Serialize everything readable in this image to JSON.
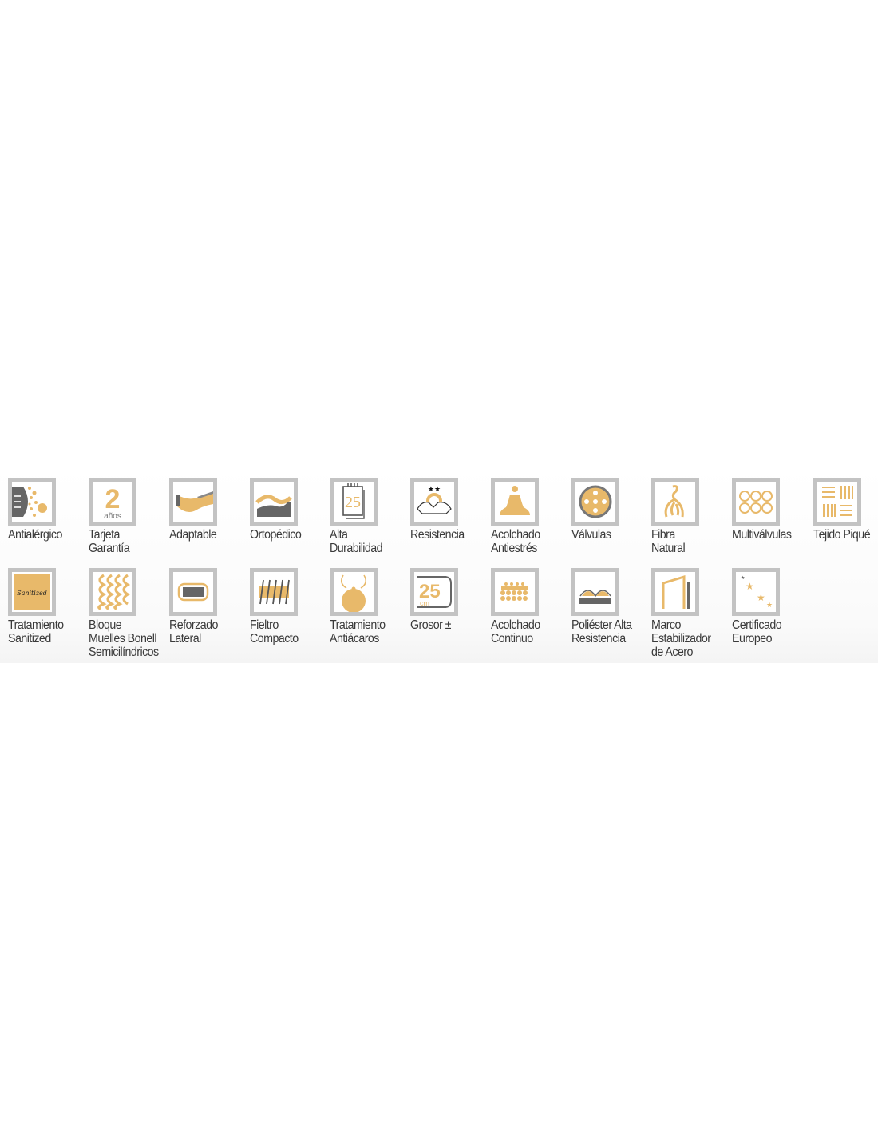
{
  "colors": {
    "frame": "#c3c3c3",
    "gold": "#e8b96a",
    "dark": "#666666",
    "text": "#3a3a3a"
  },
  "features": [
    {
      "label": "Antialérgico",
      "icon": "antiallergic-icon"
    },
    {
      "label": "Tarjeta\nGarantía",
      "icon": "warranty-2-years-icon",
      "number": "2",
      "unit": "años"
    },
    {
      "label": "Adaptable",
      "icon": "adaptable-icon"
    },
    {
      "label": "Ortopédico",
      "icon": "orthopedic-icon"
    },
    {
      "label": "Alta\nDurabilidad",
      "icon": "calendar-25-icon",
      "number": "25"
    },
    {
      "label": "Resistencia",
      "icon": "resistance-handshake-icon"
    },
    {
      "label": "Acolchado\nAntiestrés",
      "icon": "meditation-icon"
    },
    {
      "label": "Válvulas",
      "icon": "valve-icon"
    },
    {
      "label": "Fibra\nNatural",
      "icon": "natural-fiber-icon"
    },
    {
      "label": "Multiválvulas",
      "icon": "multi-valve-icon"
    },
    {
      "label": "Tejido Piqué",
      "icon": "pique-fabric-icon"
    },
    {
      "label": "Tratamiento\nSanitized",
      "icon": "sanitized-icon",
      "badge": "Sanitized"
    },
    {
      "label": "Bloque\nMuelles Bonell\nSemicilíndricos",
      "icon": "bonnell-springs-icon"
    },
    {
      "label": "Reforzado\nLateral",
      "icon": "side-reinforcement-icon"
    },
    {
      "label": "Fieltro\nCompacto",
      "icon": "felt-icon"
    },
    {
      "label": "Tratamiento\nAntiácaros",
      "icon": "anti-mite-icon"
    },
    {
      "label": "Grosor ±",
      "icon": "thickness-25cm-icon",
      "number": "25",
      "unit": "cm"
    },
    {
      "label": "Acolchado\nContinuo",
      "icon": "continuous-quilting-icon"
    },
    {
      "label": "Poliéster Alta\nResistencia",
      "icon": "polyester-icon"
    },
    {
      "label": "Marco\nEstabilizador\nde Acero",
      "icon": "steel-frame-icon"
    },
    {
      "label": "Certificado\nEuropeo",
      "icon": "eu-stars-icon"
    }
  ]
}
